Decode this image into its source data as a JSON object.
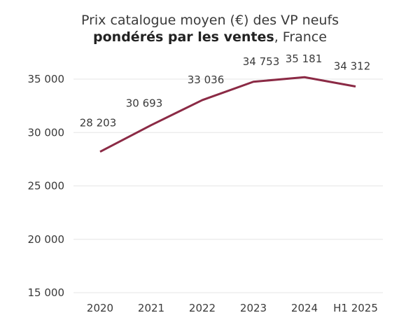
{
  "chart_data": {
    "type": "line",
    "title_line1": "Prix catalogue moyen (€) des VP neufs",
    "title_bold": "pondérés par les ventes",
    "title_rest": ", France",
    "categories": [
      "2020",
      "2021",
      "2022",
      "2023",
      "2024",
      "H1 2025"
    ],
    "series": [
      {
        "values": [
          28203,
          30693,
          33036,
          34753,
          35181,
          34312
        ],
        "labels": [
          "28 203",
          "30 693",
          "33 036",
          "34 753",
          "35 181",
          "34 312"
        ],
        "color": "#8b2a45"
      }
    ],
    "yticks": [
      15000,
      20000,
      25000,
      30000,
      35000
    ],
    "ytick_labels": [
      "15 000",
      "20 000",
      "25 000",
      "30 000",
      "35 000"
    ],
    "ylim": [
      15000,
      35000
    ],
    "grid": true,
    "legend": "none"
  }
}
